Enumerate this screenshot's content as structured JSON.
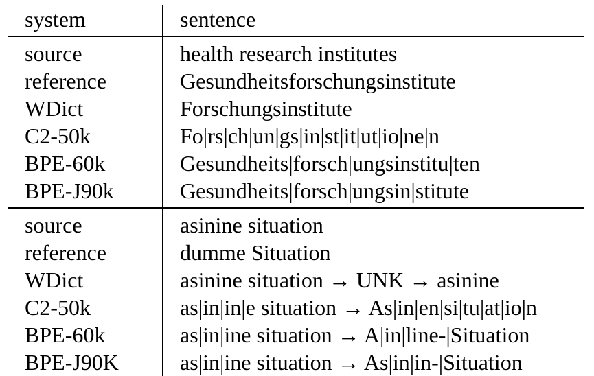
{
  "header": {
    "system": "system",
    "sentence": "sentence"
  },
  "groups": [
    {
      "rows": [
        {
          "system": "source",
          "sentence": "health research institutes"
        },
        {
          "system": "reference",
          "sentence": "Gesundheitsforschungsinstitute"
        },
        {
          "system": "WDict",
          "sentence": "Forschungsinstitute"
        },
        {
          "system": "C2-50k",
          "sentence": "Fo|rs|ch|un|gs|in|st|it|ut|io|ne|n"
        },
        {
          "system": "BPE-60k",
          "sentence": "Gesundheits|forsch|ungsinstitu|ten"
        },
        {
          "system": "BPE-J90k",
          "sentence": "Gesundheits|forsch|ungsin|stitute"
        }
      ]
    },
    {
      "rows": [
        {
          "system": "source",
          "sentence": "asinine situation"
        },
        {
          "system": "reference",
          "sentence": "dumme Situation"
        },
        {
          "system": "WDict",
          "sentence": "asinine situation → UNK → asinine"
        },
        {
          "system": "C2-50k",
          "sentence": "as|in|in|e situation → As|in|en|si|tu|at|io|n"
        },
        {
          "system": "BPE-60k",
          "sentence": "as|in|ine situation → A|in|line-|Situation"
        },
        {
          "system": "BPE-J90K",
          "sentence": "as|in|ine situation → As|in|in-|Situation"
        }
      ]
    }
  ]
}
